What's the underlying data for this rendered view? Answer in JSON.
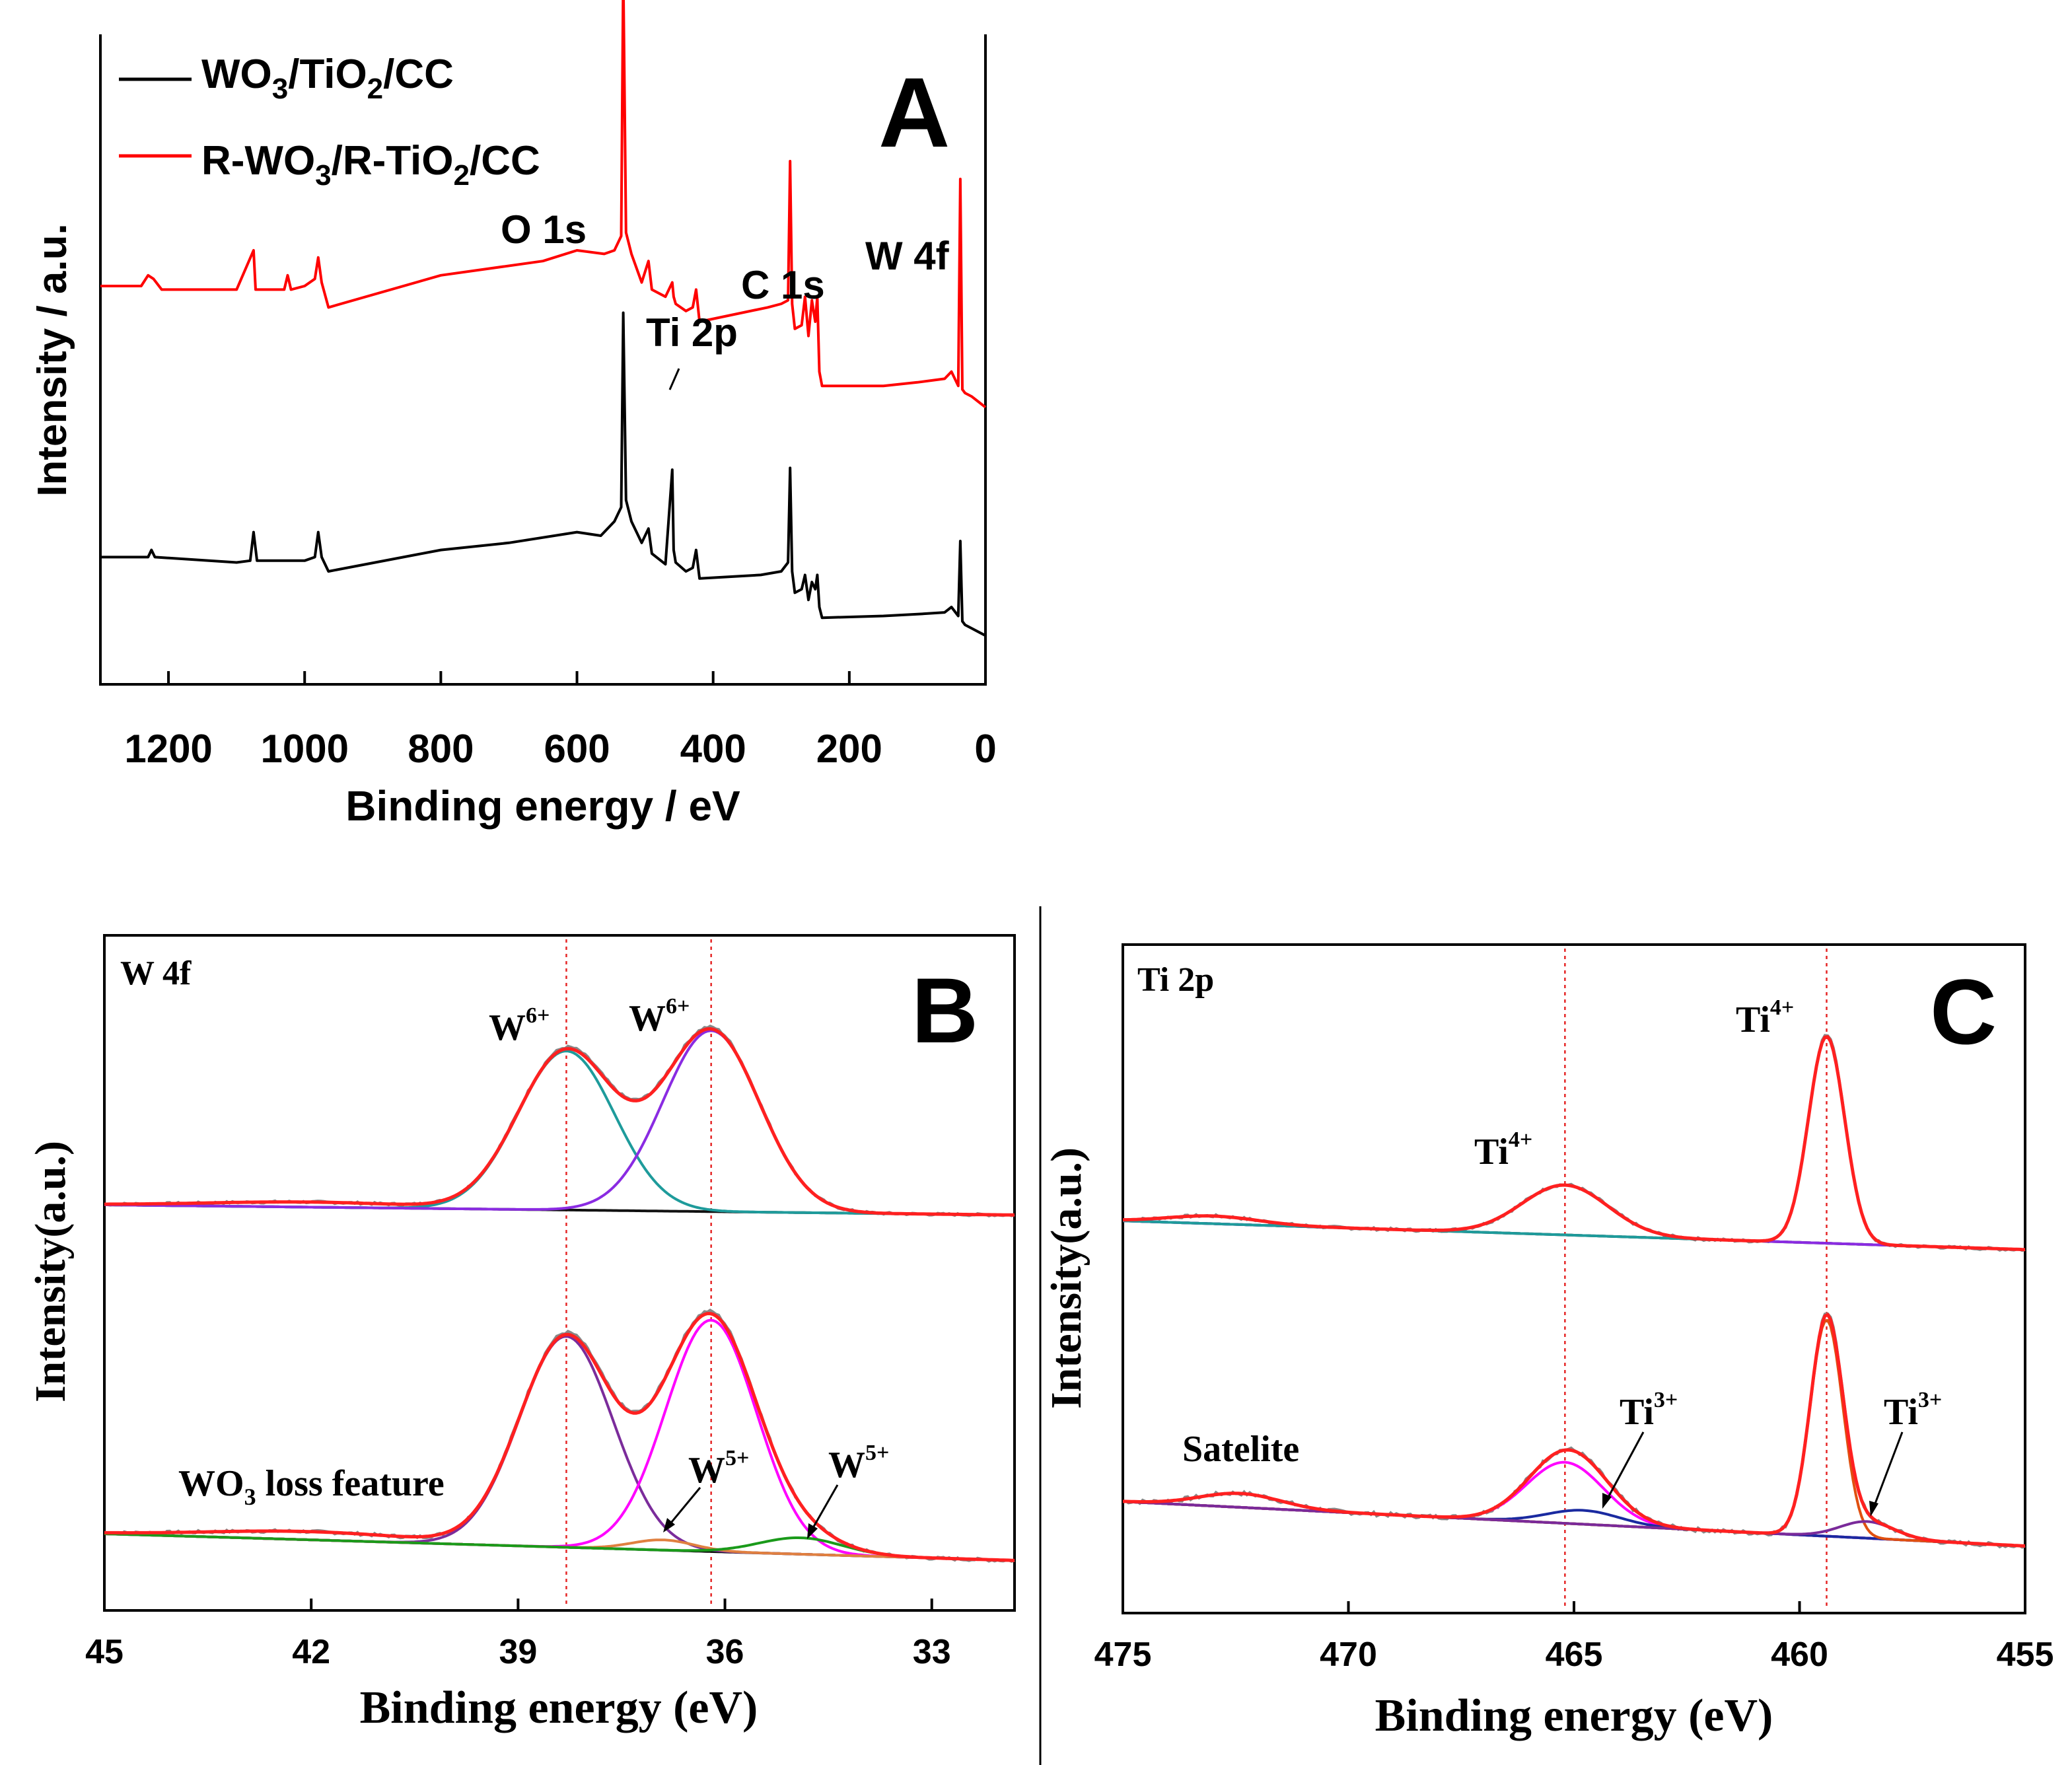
{
  "chart_data": [
    {
      "panel": "A",
      "type": "line",
      "title": "",
      "panel_letter": "A",
      "xlabel": "Binding energy / eV",
      "ylabel": "Intensity / a.u.",
      "xlim": [
        1300,
        0
      ],
      "x_ticks": [
        1200,
        1000,
        800,
        600,
        400,
        200,
        0
      ],
      "x_tick_labels": [
        "1200",
        "1000",
        "800",
        "600",
        "400",
        "200",
        "0"
      ],
      "legend": [
        {
          "label": "WO3/TiO2/CC",
          "main1": "WO",
          "sub1": "3",
          "main2": "/TiO",
          "sub2": "2",
          "main3": "/CC",
          "color": "#000000"
        },
        {
          "label": "R-WO3/R-TiO2/CC",
          "main1": "R-WO",
          "sub1": "3",
          "main2": "/R-TiO",
          "sub2": "2",
          "main3": "/CC",
          "color": "#ff0000"
        }
      ],
      "peak_labels": [
        "O 1s",
        "Ti 2p",
        "C 1s",
        "W 4f"
      ],
      "series": [
        {
          "name": "WO3/TiO2/CC",
          "color": "#000000",
          "baseline": 0.0,
          "x": [
            1300,
            1230,
            1225,
            1220,
            1100,
            1080,
            1075,
            1070,
            1000,
            985,
            980,
            975,
            965,
            800,
            700,
            600,
            565,
            545,
            535,
            532,
            528,
            520,
            505,
            495,
            490,
            470,
            460,
            458,
            455,
            440,
            430,
            425,
            420,
            330,
            300,
            290,
            287,
            284,
            280,
            270,
            265,
            260,
            255,
            250,
            247,
            244,
            240,
            150,
            100,
            60,
            50,
            40,
            37,
            34,
            30,
            20,
            10,
            0
          ],
          "y": [
            0.58,
            0.58,
            0.62,
            0.58,
            0.55,
            0.56,
            0.72,
            0.56,
            0.56,
            0.58,
            0.72,
            0.58,
            0.5,
            0.62,
            0.66,
            0.72,
            0.7,
            0.78,
            0.86,
            1.95,
            0.9,
            0.78,
            0.66,
            0.74,
            0.6,
            0.54,
            1.07,
            0.62,
            0.55,
            0.5,
            0.52,
            0.62,
            0.46,
            0.48,
            0.5,
            0.55,
            1.08,
            0.5,
            0.38,
            0.4,
            0.48,
            0.34,
            0.44,
            0.4,
            0.48,
            0.3,
            0.24,
            0.25,
            0.26,
            0.27,
            0.3,
            0.25,
            0.67,
            0.22,
            0.2,
            0.18,
            0.16,
            0.14
          ]
        },
        {
          "name": "R-WO3/R-TiO2/CC",
          "color": "#ff0000",
          "baseline": 1.5,
          "x": [
            1300,
            1240,
            1230,
            1222,
            1210,
            1100,
            1075,
            1072,
            1065,
            1030,
            1025,
            1020,
            1000,
            985,
            980,
            975,
            965,
            800,
            650,
            600,
            560,
            545,
            535,
            532,
            528,
            520,
            505,
            495,
            490,
            470,
            460,
            458,
            455,
            440,
            430,
            425,
            420,
            320,
            300,
            290,
            287,
            284,
            280,
            270,
            265,
            260,
            255,
            250,
            247,
            244,
            240,
            150,
            100,
            60,
            50,
            40,
            37,
            34,
            30,
            20,
            10,
            0
          ],
          "y": [
            0.6,
            0.6,
            0.66,
            0.64,
            0.58,
            0.58,
            0.8,
            0.58,
            0.58,
            0.58,
            0.66,
            0.58,
            0.6,
            0.64,
            0.76,
            0.62,
            0.48,
            0.66,
            0.74,
            0.8,
            0.78,
            0.8,
            0.88,
            2.36,
            0.9,
            0.78,
            0.62,
            0.74,
            0.58,
            0.54,
            0.62,
            0.54,
            0.5,
            0.46,
            0.48,
            0.58,
            0.4,
            0.48,
            0.5,
            0.52,
            1.3,
            0.5,
            0.36,
            0.38,
            0.54,
            0.32,
            0.52,
            0.4,
            0.54,
            0.12,
            0.04,
            0.04,
            0.06,
            0.08,
            0.12,
            0.04,
            1.2,
            0.02,
            0.0,
            -0.02,
            -0.05,
            -0.08
          ]
        }
      ]
    },
    {
      "panel": "B",
      "type": "line",
      "panel_letter": "B",
      "title": "W 4f",
      "xlabel": "Binding energy (eV)",
      "ylabel": "Intensity(a.u.)",
      "xlim": [
        45,
        31.8
      ],
      "x_ticks": [
        45,
        42,
        39,
        36,
        33
      ],
      "x_tick_labels": [
        "45",
        "42",
        "39",
        "36",
        "33"
      ],
      "guide_lines": [
        38.3,
        36.2
      ],
      "annotations": [
        {
          "text": "W",
          "sup": "6+",
          "near": 38.3,
          "sample": "upper"
        },
        {
          "text": "W",
          "sup": "6+",
          "near": 36.2,
          "sample": "upper"
        },
        {
          "text": "W",
          "sup": "5+",
          "near": 36.9,
          "sample": "lower"
        },
        {
          "text": "W",
          "sup": "5+",
          "near": 34.9,
          "sample": "lower"
        },
        {
          "text_main": "WO",
          "text_sub": "3",
          "text_rest": " loss feature",
          "label": "WO3 loss feature",
          "near": 42.0,
          "sample": "lower"
        }
      ],
      "samples": [
        {
          "name": "upper",
          "offset": 1.0,
          "bg_start": 0.0,
          "bg_end": -0.06,
          "loss": {
            "center": 42.0,
            "height": 0.03,
            "width": 1.5
          },
          "components": [
            {
              "name": "W6+ 4f5/2",
              "color": "#1e9b9b",
              "center": 38.3,
              "height": 0.94,
              "width": 0.7
            },
            {
              "name": "W6+ 4f7/2",
              "color": "#8a2be2",
              "center": 36.2,
              "height": 1.07,
              "width": 0.7
            }
          ],
          "envelope_color": "#ff2020",
          "raw_color": "#888888"
        },
        {
          "name": "lower",
          "offset": 0.0,
          "bg_start": 0.0,
          "bg_end": -0.13,
          "loss": {
            "center": 42.0,
            "height": 0.04,
            "width": 1.5
          },
          "components": [
            {
              "name": "W6+ 4f5/2",
              "color": "#7b2c9b",
              "center": 38.3,
              "height": 1.03,
              "width": 0.68
            },
            {
              "name": "W6+ 4f7/2",
              "color": "#ff00ff",
              "center": 36.2,
              "height": 1.13,
              "width": 0.66
            },
            {
              "name": "W5+ a",
              "color": "#e08040",
              "center": 36.9,
              "height": 0.05,
              "width": 0.45
            },
            {
              "name": "W5+ b",
              "color": "#1a9a1a",
              "center": 34.9,
              "height": 0.08,
              "width": 0.6
            }
          ],
          "envelope_color": "#ff2020",
          "raw_color": "#888888"
        }
      ]
    },
    {
      "panel": "C",
      "type": "line",
      "panel_letter": "C",
      "title": "Ti 2p",
      "xlabel": "Binding energy (eV)",
      "ylabel": "Intensity(a.u.)",
      "xlim": [
        475,
        455
      ],
      "x_ticks": [
        475,
        470,
        465,
        460,
        455
      ],
      "x_tick_labels": [
        "475",
        "470",
        "465",
        "460",
        "455"
      ],
      "guide_lines": [
        465.2,
        459.4
      ],
      "annotations": [
        {
          "text": "Ti",
          "sup": "4+",
          "near": 459.4,
          "sample": "upper"
        },
        {
          "text": "Ti",
          "sup": "4+",
          "near": 465.2,
          "sample": "upper"
        },
        {
          "text": "Ti",
          "sup": "3+",
          "near": 464.8,
          "sample": "lower"
        },
        {
          "text": "Ti",
          "sup": "3+",
          "near": 458.5,
          "sample": "lower"
        },
        {
          "text": "Satelite",
          "near": 472.5,
          "sample": "lower"
        }
      ],
      "samples": [
        {
          "name": "upper",
          "offset": 1.0,
          "bg_start": 0.02,
          "bg_end": -0.13,
          "loss": {
            "center": 473.0,
            "height": 0.04,
            "width": 1.0
          },
          "components": [
            {
              "name": "Ti4+ 2p1/2",
              "color": "#8a2be2",
              "center": 465.2,
              "height": 0.26,
              "width": 0.95
            },
            {
              "name": "Ti4+ 2p3/2",
              "color": "#1e9b9b",
              "center": 459.4,
              "height": 1.08,
              "width": 0.4
            }
          ],
          "envelope_color": "#ff2020",
          "raw_color": "#888888"
        },
        {
          "name": "lower",
          "offset": 0.0,
          "bg_start": 0.04,
          "bg_end": -0.12,
          "loss": {
            "center": 472.4,
            "height": 0.05,
            "width": 0.9
          },
          "components": [
            {
              "name": "Ti4+ 2p1/2",
              "color": "#ff00ff",
              "center": 465.2,
              "height": 0.22,
              "width": 0.85
            },
            {
              "name": "Ti3+ 2p1/2",
              "color": "#1a2aa0",
              "center": 464.8,
              "height": 0.05,
              "width": 0.8
            },
            {
              "name": "Ti4+ 2p3/2",
              "color": "#e05010",
              "center": 459.4,
              "height": 0.78,
              "width": 0.36
            },
            {
              "name": "Ti3+ 2p3/2",
              "color": "#7a2a9a",
              "center": 458.5,
              "height": 0.06,
              "width": 0.6
            }
          ],
          "envelope_color": "#ff2020",
          "raw_color": "#888888"
        }
      ]
    }
  ]
}
